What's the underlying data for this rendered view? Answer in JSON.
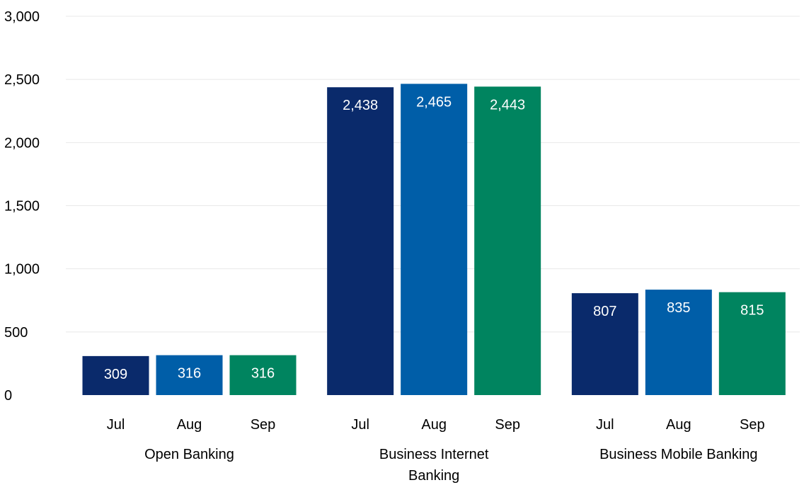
{
  "chart_data": {
    "type": "bar",
    "groups": [
      {
        "name_lines": [
          "Open Banking"
        ],
        "bars": [
          {
            "category": "Jul",
            "value": 309,
            "label": "309"
          },
          {
            "category": "Aug",
            "value": 316,
            "label": "316"
          },
          {
            "category": "Sep",
            "value": 316,
            "label": "316"
          }
        ]
      },
      {
        "name_lines": [
          "Business Internet",
          "Banking"
        ],
        "bars": [
          {
            "category": "Jul",
            "value": 2438,
            "label": "2,438"
          },
          {
            "category": "Aug",
            "value": 2465,
            "label": "2,465"
          },
          {
            "category": "Sep",
            "value": 2443,
            "label": "2,443"
          }
        ]
      },
      {
        "name_lines": [
          "Business Mobile Banking"
        ],
        "bars": [
          {
            "category": "Jul",
            "value": 807,
            "label": "807"
          },
          {
            "category": "Aug",
            "value": 835,
            "label": "835"
          },
          {
            "category": "Sep",
            "value": 815,
            "label": "815"
          }
        ]
      }
    ],
    "colors": {
      "Jul": "#0a2a6b",
      "Aug": "#005ea8",
      "Sep": "#00845f"
    },
    "yticks": [
      {
        "value": 0,
        "label": "0"
      },
      {
        "value": 500,
        "label": "500"
      },
      {
        "value": 1000,
        "label": "1,000"
      },
      {
        "value": 1500,
        "label": "1,500"
      },
      {
        "value": 2000,
        "label": "2,000"
      },
      {
        "value": 2500,
        "label": "2,500"
      },
      {
        "value": 3000,
        "label": "3,000"
      }
    ],
    "ylim": [
      0,
      3000
    ],
    "grid": true,
    "title": "",
    "xlabel": "",
    "ylabel": ""
  }
}
